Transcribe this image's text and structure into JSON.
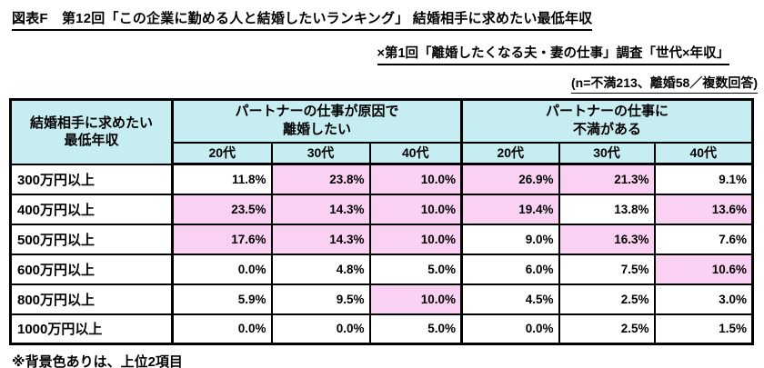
{
  "page": {
    "title_line1": "図表F　第12回「この企業に勤める人と結婚したいランキング」 結婚相手に求めたい最低年収",
    "title_line2": "×第1回「離婚したくなる夫・妻の仕事」調査「世代×年収」",
    "sample_note": "(n=不満213、離婚58／複数回答)",
    "footnote": "※背景色ありは、上位2項目"
  },
  "colors": {
    "header_bg": "#c6eef2",
    "highlight_bg": "#fad1f2",
    "border": "#000000"
  },
  "table": {
    "corner_label": "結婚相手に求めたい\n最低年収",
    "groups": [
      {
        "label": "パートナーの仕事が原因で\n離婚したい",
        "sub": [
          "20代",
          "30代",
          "40代"
        ]
      },
      {
        "label": "パートナーの仕事に\n不満がある",
        "sub": [
          "20代",
          "30代",
          "40代"
        ]
      }
    ],
    "rows": [
      {
        "label": "300万円以上",
        "values": [
          "11.8%",
          "23.8%",
          "10.0%",
          "26.9%",
          "21.3%",
          "9.1%"
        ],
        "highlight": [
          false,
          true,
          true,
          true,
          true,
          false
        ]
      },
      {
        "label": "400万円以上",
        "values": [
          "23.5%",
          "14.3%",
          "10.0%",
          "19.4%",
          "13.8%",
          "13.6%"
        ],
        "highlight": [
          true,
          true,
          true,
          true,
          false,
          true
        ]
      },
      {
        "label": "500万円以上",
        "values": [
          "17.6%",
          "14.3%",
          "10.0%",
          "9.0%",
          "16.3%",
          "7.6%"
        ],
        "highlight": [
          true,
          true,
          true,
          false,
          true,
          false
        ]
      },
      {
        "label": "600万円以上",
        "values": [
          "0.0%",
          "4.8%",
          "5.0%",
          "6.0%",
          "7.5%",
          "10.6%"
        ],
        "highlight": [
          false,
          false,
          false,
          false,
          false,
          true
        ]
      },
      {
        "label": "800万円以上",
        "values": [
          "5.9%",
          "9.5%",
          "10.0%",
          "4.5%",
          "2.5%",
          "3.0%"
        ],
        "highlight": [
          false,
          false,
          true,
          false,
          false,
          false
        ]
      },
      {
        "label": "1000万円以上",
        "values": [
          "0.0%",
          "0.0%",
          "5.0%",
          "0.0%",
          "2.5%",
          "1.5%"
        ],
        "highlight": [
          false,
          false,
          false,
          false,
          false,
          false
        ]
      }
    ]
  },
  "chart_data": {
    "type": "table",
    "title": "図表F 第12回「この企業に勤める人と結婚したいランキング」 結婚相手に求めたい最低年収 × 第1回「離婚したくなる夫・妻の仕事」調査「世代×年収」",
    "row_header": "結婚相手に求めたい最低年収",
    "column_groups": [
      "パートナーの仕事が原因で離婚したい",
      "パートナーの仕事に不満がある"
    ],
    "columns": [
      "離婚したい 20代",
      "離婚したい 30代",
      "離婚したい 40代",
      "不満がある 20代",
      "不満がある 30代",
      "不満がある 40代"
    ],
    "categories": [
      "300万円以上",
      "400万円以上",
      "500万円以上",
      "600万円以上",
      "800万円以上",
      "1000万円以上"
    ],
    "values_percent": [
      [
        11.8,
        23.8,
        10.0,
        26.9,
        21.3,
        9.1
      ],
      [
        23.5,
        14.3,
        10.0,
        19.4,
        13.8,
        13.6
      ],
      [
        17.6,
        14.3,
        10.0,
        9.0,
        16.3,
        7.6
      ],
      [
        0.0,
        4.8,
        5.0,
        6.0,
        7.5,
        10.6
      ],
      [
        5.9,
        9.5,
        10.0,
        4.5,
        2.5,
        3.0
      ],
      [
        0.0,
        0.0,
        5.0,
        0.0,
        2.5,
        1.5
      ]
    ],
    "highlight_note": "背景色ありは、上位2項目 (highlighted cells = top 2 per column)"
  }
}
